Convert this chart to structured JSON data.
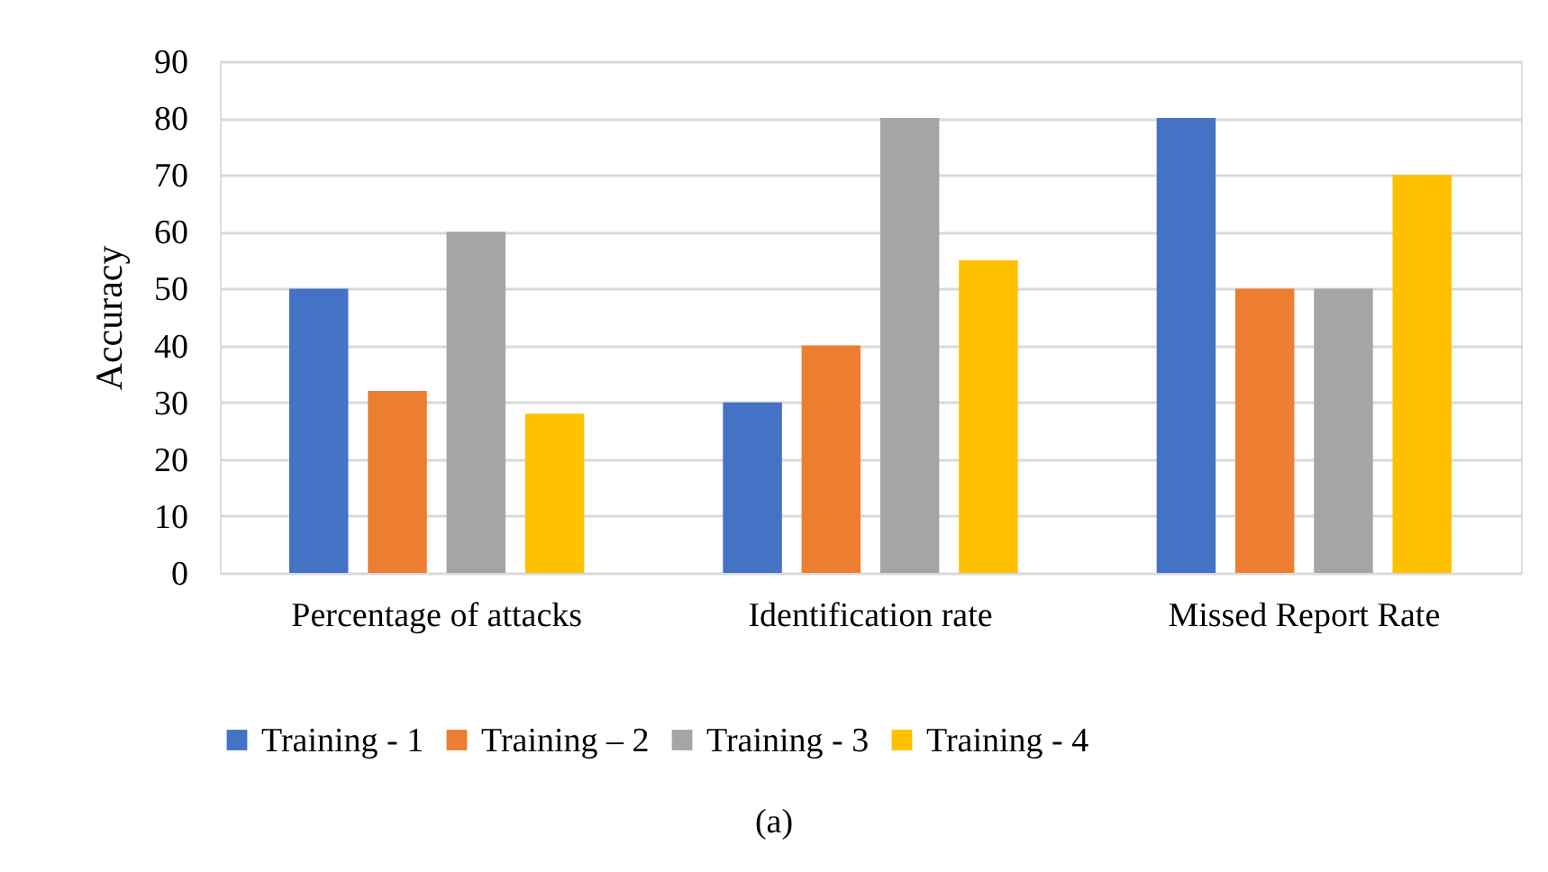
{
  "chart_data": {
    "type": "bar",
    "ylabel": "Accuracy",
    "categories": [
      "Percentage of attacks",
      "Identification rate",
      "Missed Report Rate"
    ],
    "series": [
      {
        "name": "Training - 1",
        "color": "#4472c4",
        "values": [
          50,
          30,
          80
        ]
      },
      {
        "name": "Training – 2",
        "color": "#ed7d31",
        "values": [
          32,
          40,
          50
        ]
      },
      {
        "name": "Training - 3",
        "color": "#a5a5a5",
        "values": [
          60,
          80,
          50
        ]
      },
      {
        "name": "Training - 4",
        "color": "#ffc000",
        "values": [
          28,
          55,
          70
        ]
      }
    ],
    "ylim": [
      0,
      90
    ],
    "yticks": [
      0,
      10,
      20,
      30,
      40,
      50,
      60,
      70,
      80,
      90
    ],
    "grid": "y",
    "legend": "bottom",
    "annotations": [
      "(a)"
    ]
  }
}
